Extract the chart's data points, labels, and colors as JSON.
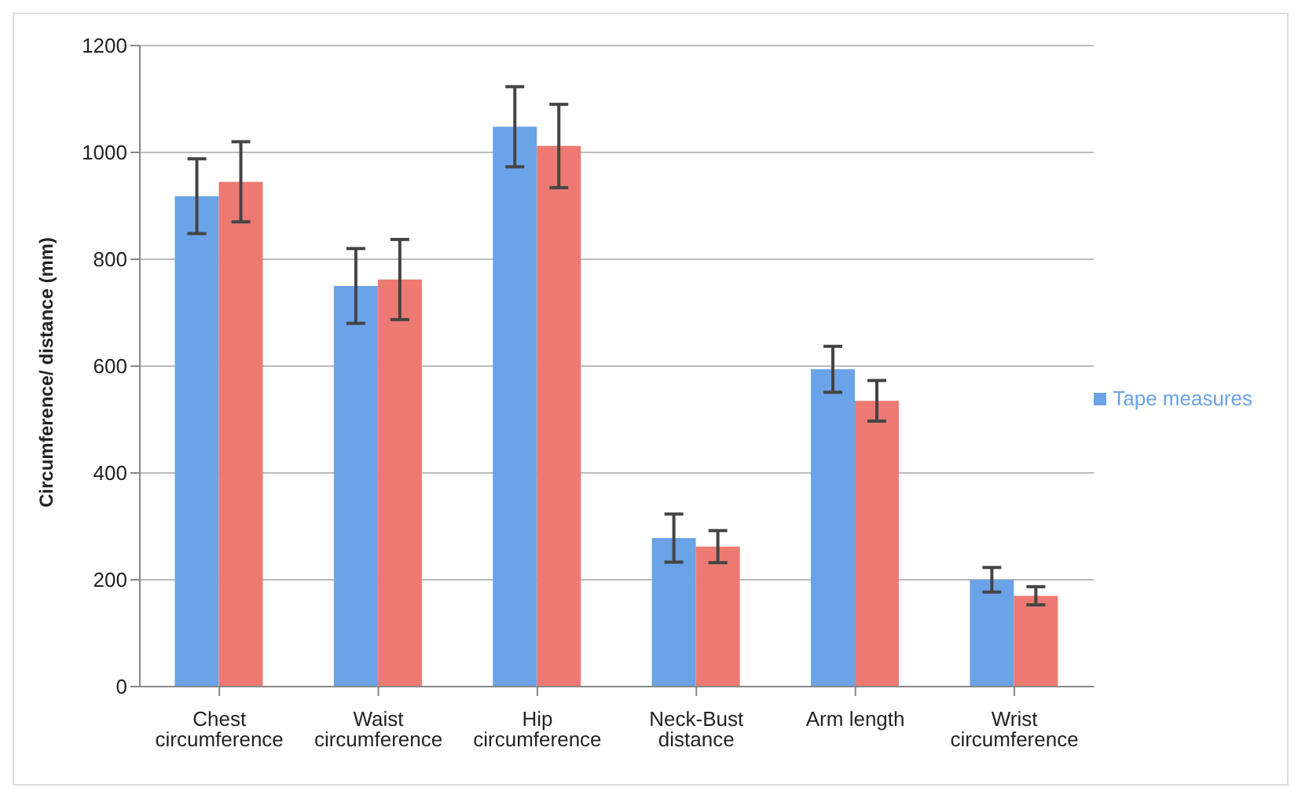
{
  "chart_data": {
    "type": "bar",
    "ylabel": "Circumference/ distance (mm)",
    "categories": [
      "Chest circumference",
      "Waist circumference",
      "Hip circumference",
      "Neck-Bust distance",
      "Arm length",
      "Wrist circumference"
    ],
    "series": [
      {
        "name": "Tape measures",
        "color": "#6aa3e8",
        "values": [
          918,
          750,
          1048,
          278,
          594,
          200
        ],
        "errors": [
          70,
          70,
          75,
          45,
          43,
          23
        ]
      },
      {
        "color": "#ec7a72",
        "values": [
          945,
          762,
          1012,
          262,
          535,
          170
        ],
        "errors": [
          75,
          75,
          78,
          30,
          38,
          17
        ]
      }
    ],
    "ylim": [
      0,
      1200
    ],
    "yticks": [
      0,
      200,
      400,
      600,
      800,
      1000,
      1200
    ],
    "grid": "y",
    "legend": "right"
  }
}
